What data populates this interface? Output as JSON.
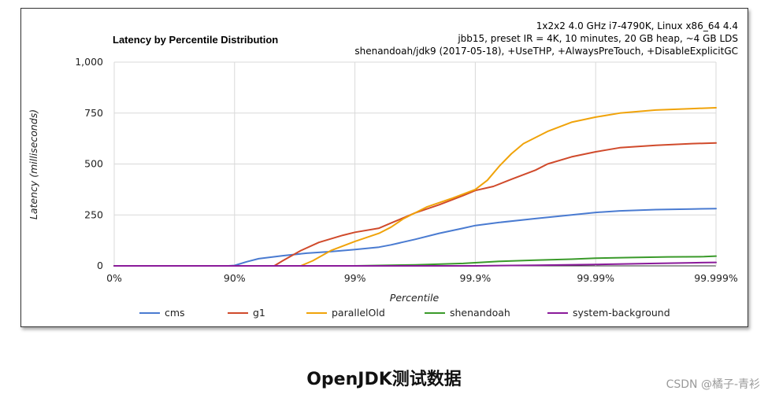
{
  "chart_data": {
    "type": "line",
    "title": "Latency by Percentile Distribution",
    "info_lines": [
      "1x2x2 4.0 GHz i7-4790K, Linux x86_64 4.4",
      "jbb15, preset IR = 4K, 10 minutes, 20 GB heap, ~4 GB LDS",
      "shenandoah/jdk9 (2017-05-18), +UseTHP, +AlwaysPreTouch, +DisableExplicitGC"
    ],
    "xlabel": "Percentile",
    "ylabel": "Latency (milliseconds)",
    "x_scale": "log-nines",
    "x_range": [
      0,
      5
    ],
    "x_ticks": [
      {
        "pos": 0,
        "label": "0%"
      },
      {
        "pos": 1,
        "label": "90%"
      },
      {
        "pos": 2,
        "label": "99%"
      },
      {
        "pos": 3,
        "label": "99.9%"
      },
      {
        "pos": 4,
        "label": "99.99%"
      },
      {
        "pos": 5,
        "label": "99.999%"
      }
    ],
    "y_ticks": [
      {
        "value": 0,
        "label": "0"
      },
      {
        "value": 250,
        "label": "250"
      },
      {
        "value": 500,
        "label": "500"
      },
      {
        "value": 750,
        "label": "750"
      },
      {
        "value": 1000,
        "label": "1,000"
      }
    ],
    "ylim": [
      0,
      1000
    ],
    "grid": true,
    "legend_position": "bottom",
    "series": [
      {
        "name": "cms",
        "color": "#4a7bd1",
        "points": [
          [
            0,
            0
          ],
          [
            0.95,
            0
          ],
          [
            1.0,
            2
          ],
          [
            1.1,
            20
          ],
          [
            1.2,
            35
          ],
          [
            1.4,
            50
          ],
          [
            1.6,
            62
          ],
          [
            1.8,
            70
          ],
          [
            2.0,
            80
          ],
          [
            2.2,
            92
          ],
          [
            2.3,
            103
          ],
          [
            2.5,
            130
          ],
          [
            2.7,
            160
          ],
          [
            2.9,
            185
          ],
          [
            3.0,
            198
          ],
          [
            3.2,
            213
          ],
          [
            3.5,
            232
          ],
          [
            3.8,
            250
          ],
          [
            4.0,
            262
          ],
          [
            4.2,
            270
          ],
          [
            4.5,
            276
          ],
          [
            4.8,
            279
          ],
          [
            5.0,
            281
          ]
        ]
      },
      {
        "name": "g1",
        "color": "#d04a2b",
        "points": [
          [
            0,
            0
          ],
          [
            1.33,
            0
          ],
          [
            1.4,
            25
          ],
          [
            1.55,
            75
          ],
          [
            1.7,
            115
          ],
          [
            1.9,
            150
          ],
          [
            2.0,
            165
          ],
          [
            2.2,
            185
          ],
          [
            2.3,
            210
          ],
          [
            2.5,
            260
          ],
          [
            2.7,
            300
          ],
          [
            2.9,
            345
          ],
          [
            3.0,
            370
          ],
          [
            3.15,
            390
          ],
          [
            3.3,
            425
          ],
          [
            3.5,
            470
          ],
          [
            3.6,
            500
          ],
          [
            3.8,
            535
          ],
          [
            4.0,
            560
          ],
          [
            4.2,
            580
          ],
          [
            4.5,
            592
          ],
          [
            4.8,
            600
          ],
          [
            5.0,
            603
          ]
        ]
      },
      {
        "name": "parallelOld",
        "color": "#f0a30a",
        "points": [
          [
            0,
            0
          ],
          [
            1.55,
            0
          ],
          [
            1.65,
            25
          ],
          [
            1.8,
            75
          ],
          [
            2.0,
            120
          ],
          [
            2.2,
            160
          ],
          [
            2.3,
            190
          ],
          [
            2.4,
            230
          ],
          [
            2.6,
            290
          ],
          [
            2.8,
            330
          ],
          [
            3.0,
            375
          ],
          [
            3.1,
            420
          ],
          [
            3.2,
            490
          ],
          [
            3.3,
            550
          ],
          [
            3.4,
            600
          ],
          [
            3.6,
            660
          ],
          [
            3.8,
            705
          ],
          [
            4.0,
            730
          ],
          [
            4.2,
            750
          ],
          [
            4.5,
            765
          ],
          [
            4.8,
            772
          ],
          [
            5.0,
            776
          ]
        ]
      },
      {
        "name": "shenandoah",
        "color": "#3a9a2a",
        "points": [
          [
            0,
            0
          ],
          [
            2.0,
            0
          ],
          [
            2.5,
            5
          ],
          [
            2.9,
            12
          ],
          [
            3.2,
            22
          ],
          [
            3.5,
            28
          ],
          [
            3.8,
            33
          ],
          [
            4.0,
            38
          ],
          [
            4.3,
            41
          ],
          [
            4.6,
            44
          ],
          [
            4.9,
            45
          ],
          [
            5.0,
            48
          ]
        ]
      },
      {
        "name": "system-background",
        "color": "#8a1a9a",
        "points": [
          [
            0,
            0
          ],
          [
            3.0,
            0
          ],
          [
            3.5,
            3
          ],
          [
            4.0,
            7
          ],
          [
            4.5,
            12
          ],
          [
            4.8,
            15
          ],
          [
            5.0,
            17
          ]
        ]
      }
    ]
  },
  "caption": "OpenJDK测试数据",
  "watermark": "CSDN @橘子-青衫"
}
